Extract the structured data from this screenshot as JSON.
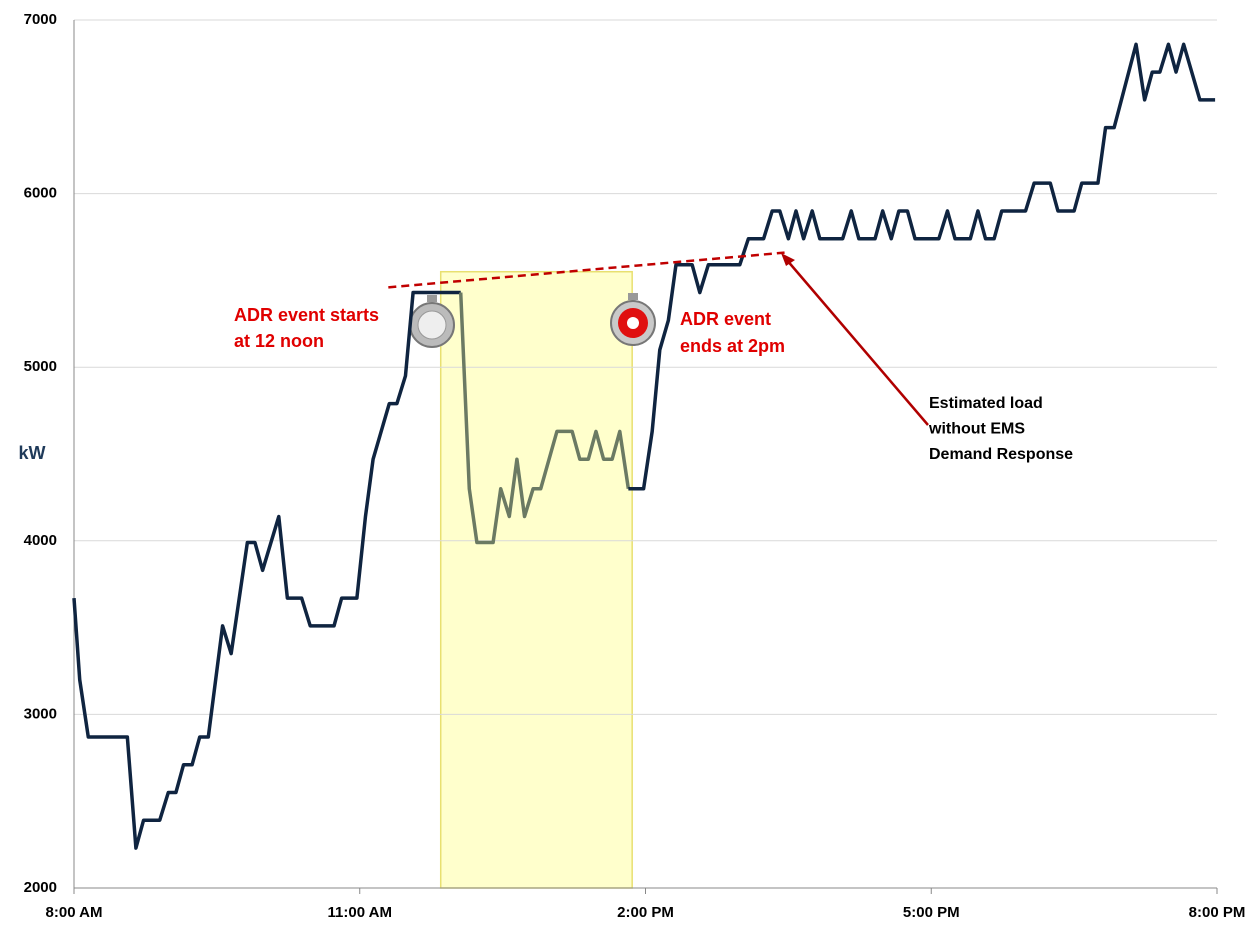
{
  "chart_data": {
    "type": "line",
    "y_label": "kW",
    "xlim": [
      8,
      20
    ],
    "xticks": [
      {
        "value": 8,
        "label": "8:00 AM"
      },
      {
        "value": 11,
        "label": "11:00 AM"
      },
      {
        "value": 14,
        "label": "2:00 PM"
      },
      {
        "value": 17,
        "label": "5:00 PM"
      },
      {
        "value": 20,
        "label": "8:00 PM"
      }
    ],
    "ylim": [
      2000,
      7000
    ],
    "yticks": [
      2000,
      3000,
      4000,
      5000,
      6000,
      7000
    ],
    "grid": true,
    "series": [
      {
        "color": "#0f2440",
        "x": [
          8.0,
          8.06,
          8.15,
          8.56,
          8.65,
          8.73,
          8.9,
          8.99,
          9.07,
          9.15,
          9.24,
          9.32,
          9.41,
          9.56,
          9.65,
          9.82,
          9.9,
          9.98,
          10.15,
          10.24,
          10.39,
          10.48,
          10.73,
          10.81,
          10.97,
          11.06,
          11.14,
          11.31,
          11.39,
          11.48,
          11.56,
          12.06
        ],
        "values": [
          3670,
          3200,
          2870,
          2870,
          2230,
          2390,
          2390,
          2550,
          2550,
          2710,
          2710,
          2870,
          2870,
          3510,
          3350,
          3990,
          3990,
          3830,
          4140,
          3670,
          3670,
          3510,
          3510,
          3670,
          3670,
          4140,
          4470,
          4790,
          4790,
          4950,
          5430,
          5430
        ]
      },
      {
        "color": "#6b7a63",
        "x": [
          12.06,
          12.15,
          12.23,
          12.4,
          12.48,
          12.57,
          12.65,
          12.73,
          12.82,
          12.9,
          13.07,
          13.23,
          13.31,
          13.4,
          13.48,
          13.56,
          13.65,
          13.73,
          13.82
        ],
        "values": [
          5430,
          4300,
          3990,
          3990,
          4300,
          4140,
          4470,
          4140,
          4300,
          4300,
          4630,
          4630,
          4470,
          4470,
          4630,
          4470,
          4470,
          4630,
          4300
        ]
      },
      {
        "color": "#0f2440",
        "x": [
          13.82,
          13.98,
          14.07,
          14.15,
          14.24,
          14.32,
          14.49,
          14.57,
          14.66,
          14.99,
          15.08,
          15.24,
          15.33,
          15.41,
          15.5,
          15.58,
          15.66,
          15.75,
          15.83,
          16.07,
          16.16,
          16.24,
          16.41,
          16.49,
          16.58,
          16.66,
          16.75,
          16.83,
          17.08,
          17.17,
          17.25,
          17.41,
          17.49,
          17.57,
          17.66,
          17.74,
          17.99,
          18.08,
          18.25,
          18.33,
          18.5,
          18.58,
          18.75,
          18.83,
          18.92,
          19.15,
          19.24,
          19.32,
          19.4,
          19.49,
          19.57,
          19.65,
          19.82,
          19.98
        ],
        "values": [
          4300,
          4300,
          4630,
          5100,
          5270,
          5590,
          5590,
          5430,
          5590,
          5590,
          5740,
          5740,
          5900,
          5900,
          5740,
          5900,
          5740,
          5900,
          5740,
          5740,
          5900,
          5740,
          5740,
          5900,
          5740,
          5900,
          5900,
          5740,
          5740,
          5900,
          5740,
          5740,
          5900,
          5740,
          5740,
          5900,
          5900,
          6060,
          6060,
          5900,
          5900,
          6060,
          6060,
          6380,
          6380,
          6860,
          6540,
          6700,
          6700,
          6860,
          6700,
          6860,
          6540,
          6540
        ]
      }
    ],
    "highlight_band": {
      "x": [
        11.85,
        13.86
      ],
      "values": [
        2000,
        5550
      ],
      "color": "#ffffcc"
    },
    "estimate_line": {
      "x": [
        11.3,
        15.46
      ],
      "values": [
        5460,
        5660
      ],
      "color": "#c00000"
    },
    "annotations": {
      "event_start": [
        "ADR event starts",
        "at 12 noon"
      ],
      "event_end": [
        "ADR event",
        "ends at 2pm"
      ],
      "estimate": [
        "Estimated load",
        "without EMS",
        "Demand Response"
      ]
    }
  }
}
